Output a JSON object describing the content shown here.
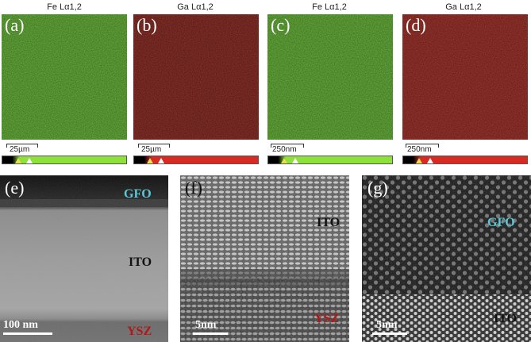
{
  "eds_maps": [
    {
      "letter": "(a)",
      "title": "Fe Lα1,2",
      "scale": "25µm",
      "color": "#3c7a1e",
      "bar_color": "#8ee03a"
    },
    {
      "letter": "(b)",
      "title": "Ga Lα1,2",
      "scale": "25µm",
      "color": "#6e1a14",
      "bar_color": "#d62a22"
    },
    {
      "letter": "(c)",
      "title": "Fe Lα1,2",
      "scale": "250nm",
      "color": "#3c7a1e",
      "bar_color": "#8ee03a"
    },
    {
      "letter": "(d)",
      "title": "Ga Lα1,2",
      "scale": "250nm",
      "color": "#7a1a16",
      "bar_color": "#d62a22"
    }
  ],
  "tem_panels": [
    {
      "letter": "(e)",
      "scale": "100 nm",
      "labels": [
        {
          "text": "GFO",
          "color": "#5bc8d8"
        },
        {
          "text": "ITO",
          "color": "#111111"
        },
        {
          "text": "YSZ",
          "color": "#b01818"
        }
      ]
    },
    {
      "letter": "(f)",
      "scale": "5nm",
      "labels": [
        {
          "text": "ITO",
          "color": "#111111"
        },
        {
          "text": "YSZ",
          "color": "#b01818"
        }
      ]
    },
    {
      "letter": "(g)",
      "scale": "5nm",
      "labels": [
        {
          "text": "GFO",
          "color": "#5bc8d8"
        },
        {
          "text": "ITO",
          "color": "#111111"
        }
      ]
    }
  ]
}
